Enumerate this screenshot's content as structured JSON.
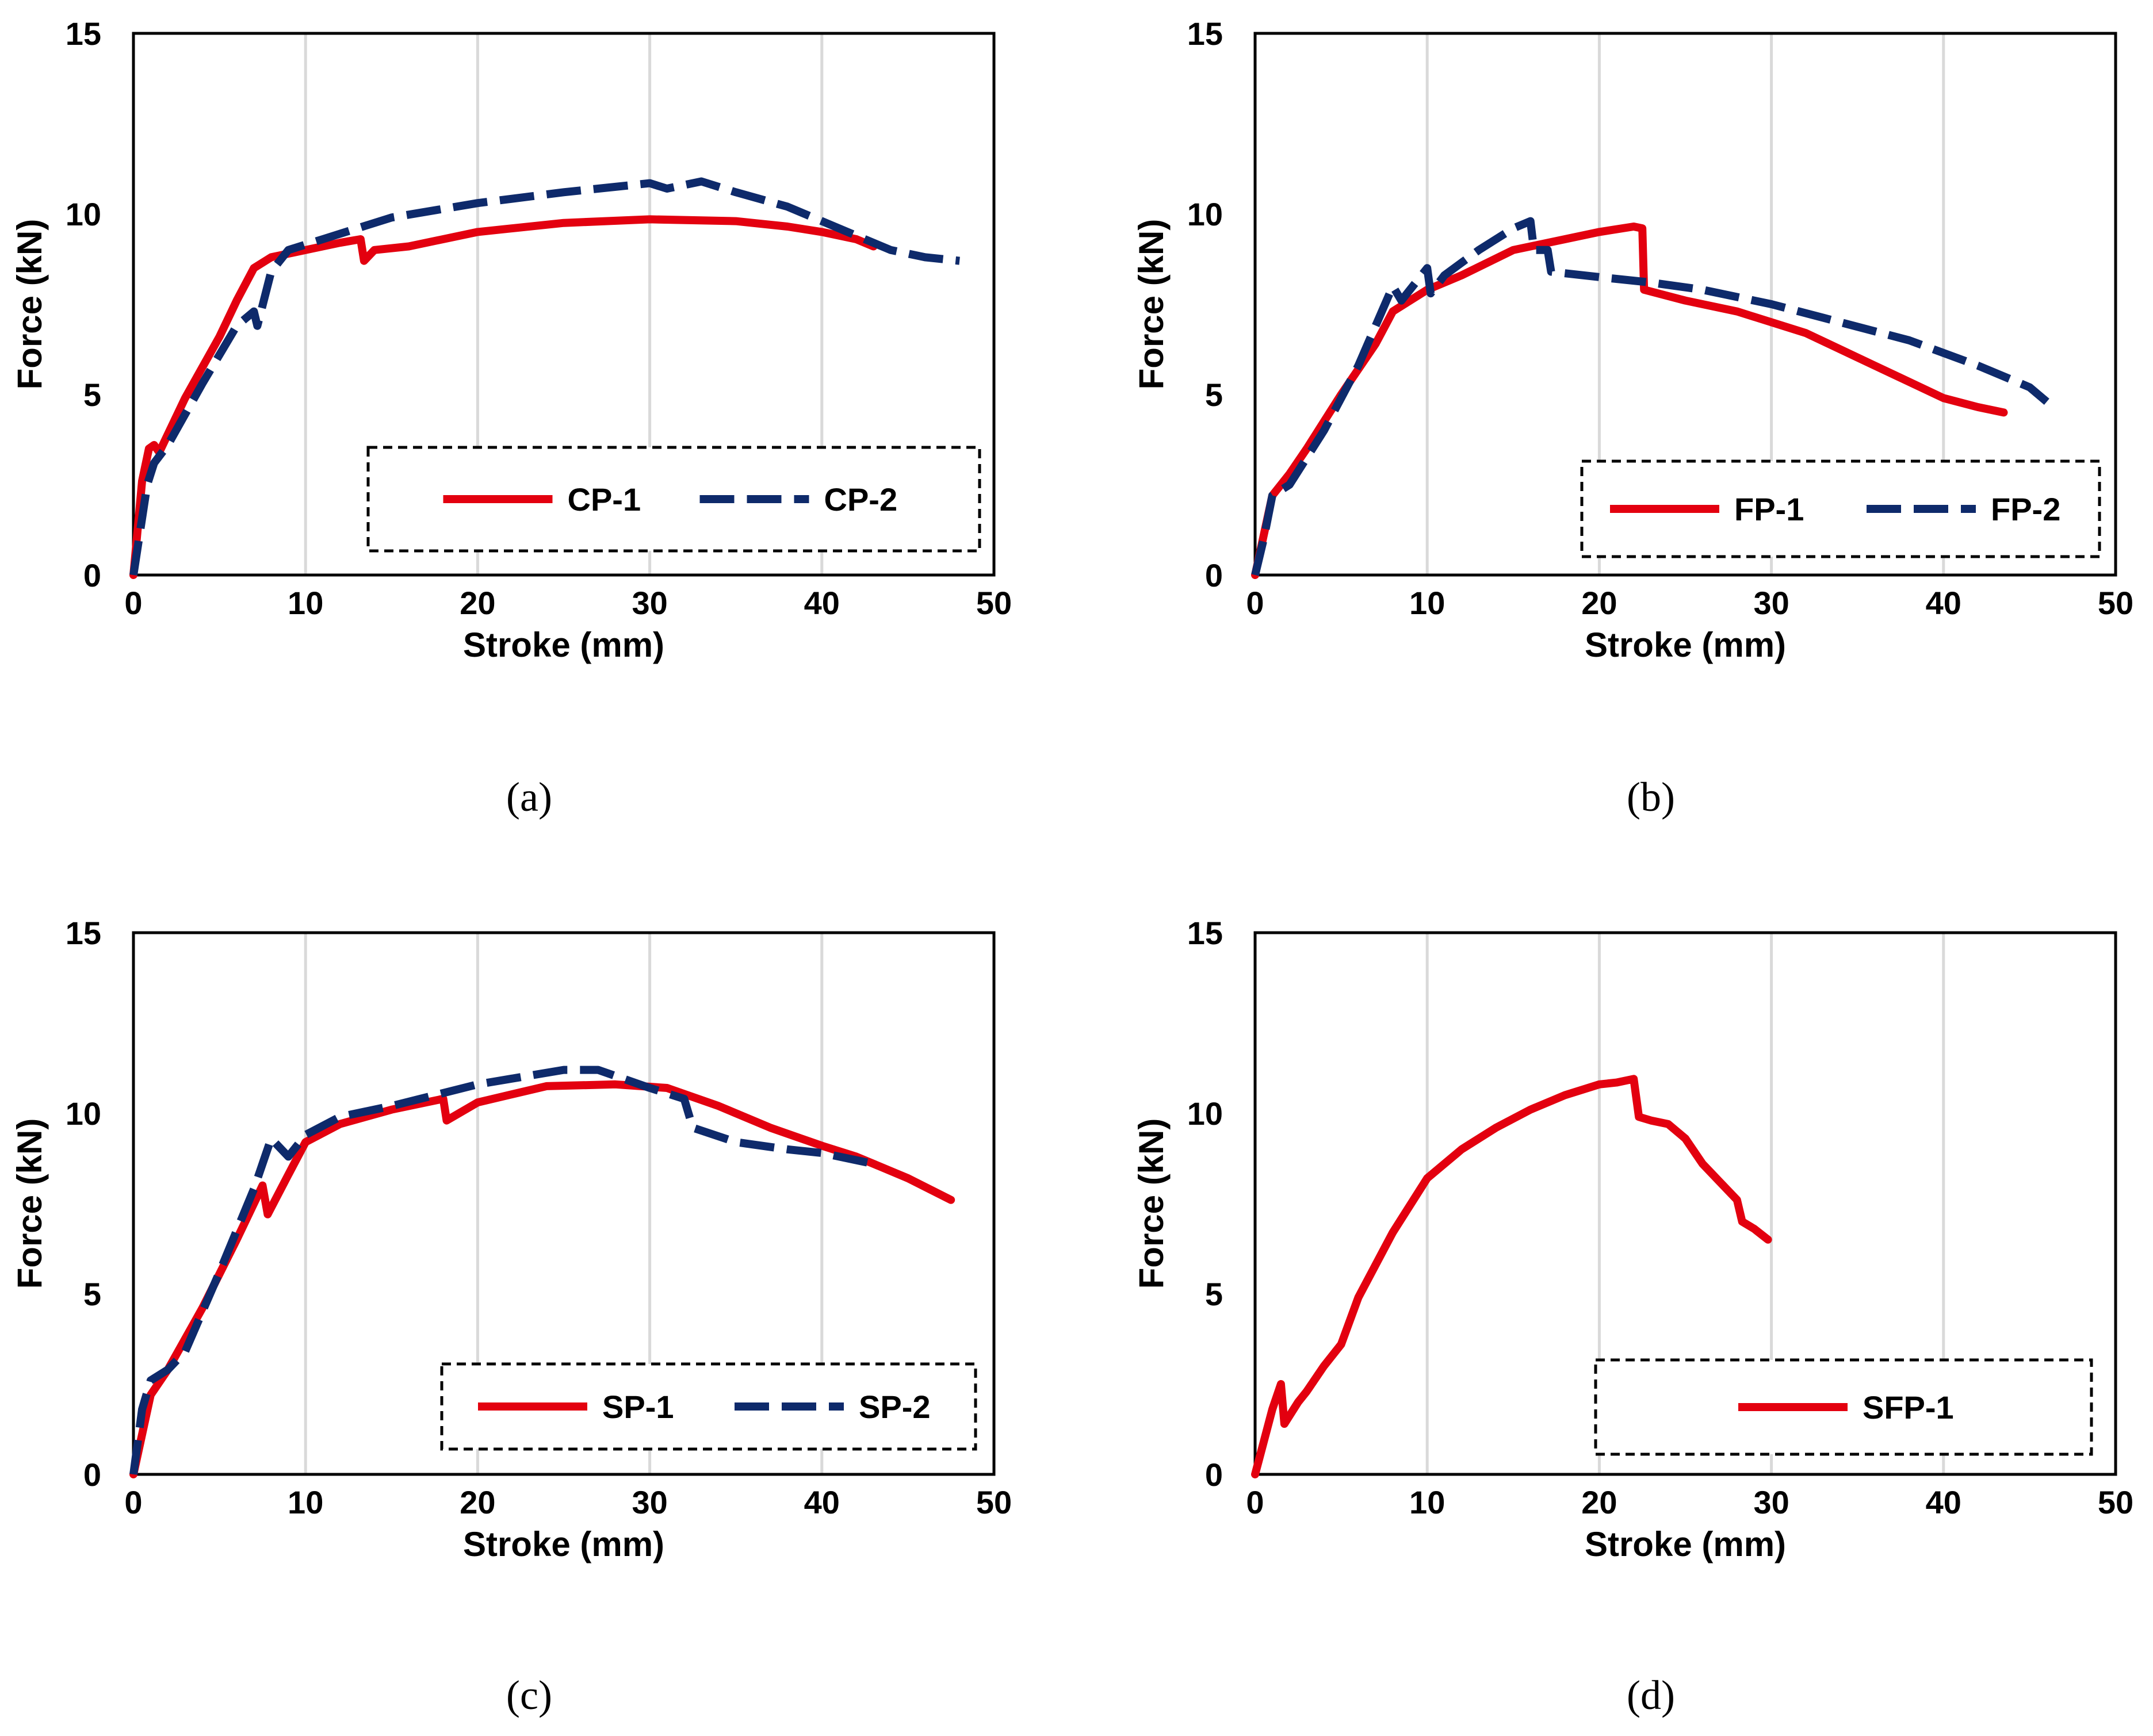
{
  "colors": {
    "red": "#e3000f",
    "navy": "#0e2a6b",
    "grid": "#d9d9d9"
  },
  "chart_data": [
    {
      "panel": "(a)",
      "type": "line",
      "xlabel": "Stroke (mm)",
      "ylabel": "Force (kN)",
      "xlim": [
        0,
        50
      ],
      "ylim": [
        0,
        15
      ],
      "xticks": [
        "0",
        "10",
        "20",
        "30",
        "40",
        "50"
      ],
      "yticks": [
        "0",
        "5",
        "10",
        "15"
      ],
      "grid": "vertical",
      "legend_position": "bottom-right",
      "series": [
        {
          "name": "CP-1",
          "style": "solid",
          "color": "red",
          "points": [
            [
              0,
              0
            ],
            [
              0.5,
              2.6
            ],
            [
              0.9,
              3.5
            ],
            [
              1.2,
              3.6
            ],
            [
              1.5,
              3.4
            ],
            [
              3,
              4.9
            ],
            [
              5,
              6.6
            ],
            [
              6,
              7.6
            ],
            [
              7,
              8.5
            ],
            [
              8,
              8.8
            ],
            [
              10,
              9.0
            ],
            [
              12,
              9.2
            ],
            [
              13.2,
              9.3
            ],
            [
              13.4,
              8.7
            ],
            [
              14,
              9.0
            ],
            [
              16,
              9.1
            ],
            [
              20,
              9.5
            ],
            [
              25,
              9.75
            ],
            [
              30,
              9.85
            ],
            [
              35,
              9.8
            ],
            [
              38,
              9.65
            ],
            [
              40,
              9.5
            ],
            [
              42,
              9.3
            ],
            [
              43,
              9.1
            ]
          ]
        },
        {
          "name": "CP-2",
          "style": "dashed",
          "color": "navy",
          "points": [
            [
              0,
              0
            ],
            [
              0.8,
              2.5
            ],
            [
              1.2,
              3.1
            ],
            [
              2,
              3.6
            ],
            [
              4,
              5.3
            ],
            [
              6,
              6.9
            ],
            [
              7,
              7.3
            ],
            [
              7.2,
              6.9
            ],
            [
              8,
              8.4
            ],
            [
              9,
              9.0
            ],
            [
              11,
              9.3
            ],
            [
              13,
              9.6
            ],
            [
              15,
              9.9
            ],
            [
              20,
              10.3
            ],
            [
              25,
              10.6
            ],
            [
              30,
              10.85
            ],
            [
              31,
              10.7
            ],
            [
              33,
              10.9
            ],
            [
              35,
              10.6
            ],
            [
              38,
              10.2
            ],
            [
              40,
              9.8
            ],
            [
              42,
              9.4
            ],
            [
              44,
              9.0
            ],
            [
              46,
              8.8
            ],
            [
              48,
              8.7
            ]
          ]
        }
      ]
    },
    {
      "panel": "(b)",
      "type": "line",
      "xlabel": "Stroke (mm)",
      "ylabel": "Force (kN)",
      "xlim": [
        0,
        50
      ],
      "ylim": [
        0,
        15
      ],
      "xticks": [
        "0",
        "10",
        "20",
        "30",
        "40",
        "50"
      ],
      "yticks": [
        "0",
        "5",
        "10",
        "15"
      ],
      "grid": "vertical",
      "legend_position": "bottom-right",
      "series": [
        {
          "name": "FP-1",
          "style": "solid",
          "color": "red",
          "points": [
            [
              0,
              0
            ],
            [
              1,
              2.2
            ],
            [
              2,
              2.8
            ],
            [
              3,
              3.5
            ],
            [
              5,
              5.0
            ],
            [
              7,
              6.4
            ],
            [
              8,
              7.3
            ],
            [
              10,
              7.9
            ],
            [
              12,
              8.3
            ],
            [
              15,
              9.0
            ],
            [
              18,
              9.3
            ],
            [
              20,
              9.5
            ],
            [
              22,
              9.65
            ],
            [
              22.5,
              9.6
            ],
            [
              22.6,
              7.9
            ],
            [
              25,
              7.6
            ],
            [
              28,
              7.3
            ],
            [
              32,
              6.7
            ],
            [
              36,
              5.8
            ],
            [
              40,
              4.9
            ],
            [
              42,
              4.65
            ],
            [
              43.5,
              4.5
            ]
          ]
        },
        {
          "name": "FP-2",
          "style": "dashed",
          "color": "navy",
          "points": [
            [
              0,
              0
            ],
            [
              0.5,
              1.0
            ],
            [
              1,
              2.2
            ],
            [
              2,
              2.5
            ],
            [
              4,
              4.0
            ],
            [
              6,
              5.8
            ],
            [
              8,
              8.0
            ],
            [
              8.5,
              7.6
            ],
            [
              10,
              8.5
            ],
            [
              10.2,
              7.8
            ],
            [
              11,
              8.3
            ],
            [
              13,
              9.0
            ],
            [
              15,
              9.6
            ],
            [
              16,
              9.8
            ],
            [
              16.2,
              9.0
            ],
            [
              17,
              9.0
            ],
            [
              17.2,
              8.4
            ],
            [
              20,
              8.25
            ],
            [
              23,
              8.1
            ],
            [
              26,
              7.9
            ],
            [
              30,
              7.5
            ],
            [
              34,
              7.0
            ],
            [
              38,
              6.5
            ],
            [
              42,
              5.8
            ],
            [
              45,
              5.2
            ],
            [
              46,
              4.8
            ]
          ]
        }
      ]
    },
    {
      "panel": "(c)",
      "type": "line",
      "xlabel": "Stroke (mm)",
      "ylabel": "Force (kN)",
      "xlim": [
        0,
        50
      ],
      "ylim": [
        0,
        15
      ],
      "xticks": [
        "0",
        "10",
        "20",
        "30",
        "40",
        "50"
      ],
      "yticks": [
        "0",
        "5",
        "10",
        "15"
      ],
      "grid": "vertical",
      "legend_position": "bottom-right",
      "series": [
        {
          "name": "SP-1",
          "style": "solid",
          "color": "red",
          "points": [
            [
              0,
              0
            ],
            [
              1,
              2.2
            ],
            [
              2,
              2.9
            ],
            [
              4,
              4.6
            ],
            [
              6,
              6.5
            ],
            [
              7.5,
              8.0
            ],
            [
              7.8,
              7.2
            ],
            [
              9,
              8.3
            ],
            [
              10,
              9.2
            ],
            [
              12,
              9.7
            ],
            [
              15,
              10.1
            ],
            [
              18,
              10.4
            ],
            [
              18.2,
              9.8
            ],
            [
              20,
              10.3
            ],
            [
              24,
              10.75
            ],
            [
              28,
              10.8
            ],
            [
              31,
              10.7
            ],
            [
              34,
              10.2
            ],
            [
              37,
              9.6
            ],
            [
              40,
              9.1
            ],
            [
              42,
              8.8
            ],
            [
              45,
              8.2
            ],
            [
              47.5,
              7.6
            ]
          ]
        },
        {
          "name": "SP-2",
          "style": "dashed",
          "color": "navy",
          "points": [
            [
              0,
              0
            ],
            [
              0.5,
              1.8
            ],
            [
              1,
              2.6
            ],
            [
              2,
              2.9
            ],
            [
              3,
              3.4
            ],
            [
              5,
              5.6
            ],
            [
              7,
              7.9
            ],
            [
              8,
              9.3
            ],
            [
              9,
              8.8
            ],
            [
              10,
              9.4
            ],
            [
              12,
              9.9
            ],
            [
              15,
              10.2
            ],
            [
              20,
              10.8
            ],
            [
              25,
              11.2
            ],
            [
              27,
              11.2
            ],
            [
              30,
              10.7
            ],
            [
              32,
              10.4
            ],
            [
              32.5,
              9.6
            ],
            [
              35,
              9.2
            ],
            [
              38,
              9.0
            ],
            [
              40,
              8.9
            ],
            [
              42,
              8.7
            ],
            [
              43,
              8.6
            ]
          ]
        }
      ]
    },
    {
      "panel": "(d)",
      "type": "line",
      "xlabel": "Stroke (mm)",
      "ylabel": "Force (kN)",
      "xlim": [
        0,
        50
      ],
      "ylim": [
        0,
        15
      ],
      "xticks": [
        "0",
        "10",
        "20",
        "30",
        "40",
        "50"
      ],
      "yticks": [
        "0",
        "5",
        "10",
        "15"
      ],
      "grid": "vertical",
      "legend_position": "bottom-right",
      "series": [
        {
          "name": "SFP-1",
          "style": "solid",
          "color": "red",
          "points": [
            [
              0,
              0
            ],
            [
              1,
              1.8
            ],
            [
              1.5,
              2.5
            ],
            [
              1.7,
              1.4
            ],
            [
              2.5,
              2.0
            ],
            [
              3,
              2.3
            ],
            [
              4,
              3.0
            ],
            [
              5,
              3.6
            ],
            [
              6,
              4.9
            ],
            [
              8,
              6.7
            ],
            [
              10,
              8.2
            ],
            [
              12,
              9.0
            ],
            [
              14,
              9.6
            ],
            [
              16,
              10.1
            ],
            [
              18,
              10.5
            ],
            [
              20,
              10.8
            ],
            [
              21,
              10.85
            ],
            [
              22,
              10.95
            ],
            [
              22.3,
              9.9
            ],
            [
              23,
              9.8
            ],
            [
              24,
              9.7
            ],
            [
              25,
              9.3
            ],
            [
              26,
              8.6
            ],
            [
              27,
              8.1
            ],
            [
              28,
              7.6
            ],
            [
              28.3,
              7.0
            ],
            [
              29,
              6.8
            ],
            [
              29.8,
              6.5
            ]
          ]
        }
      ]
    }
  ]
}
